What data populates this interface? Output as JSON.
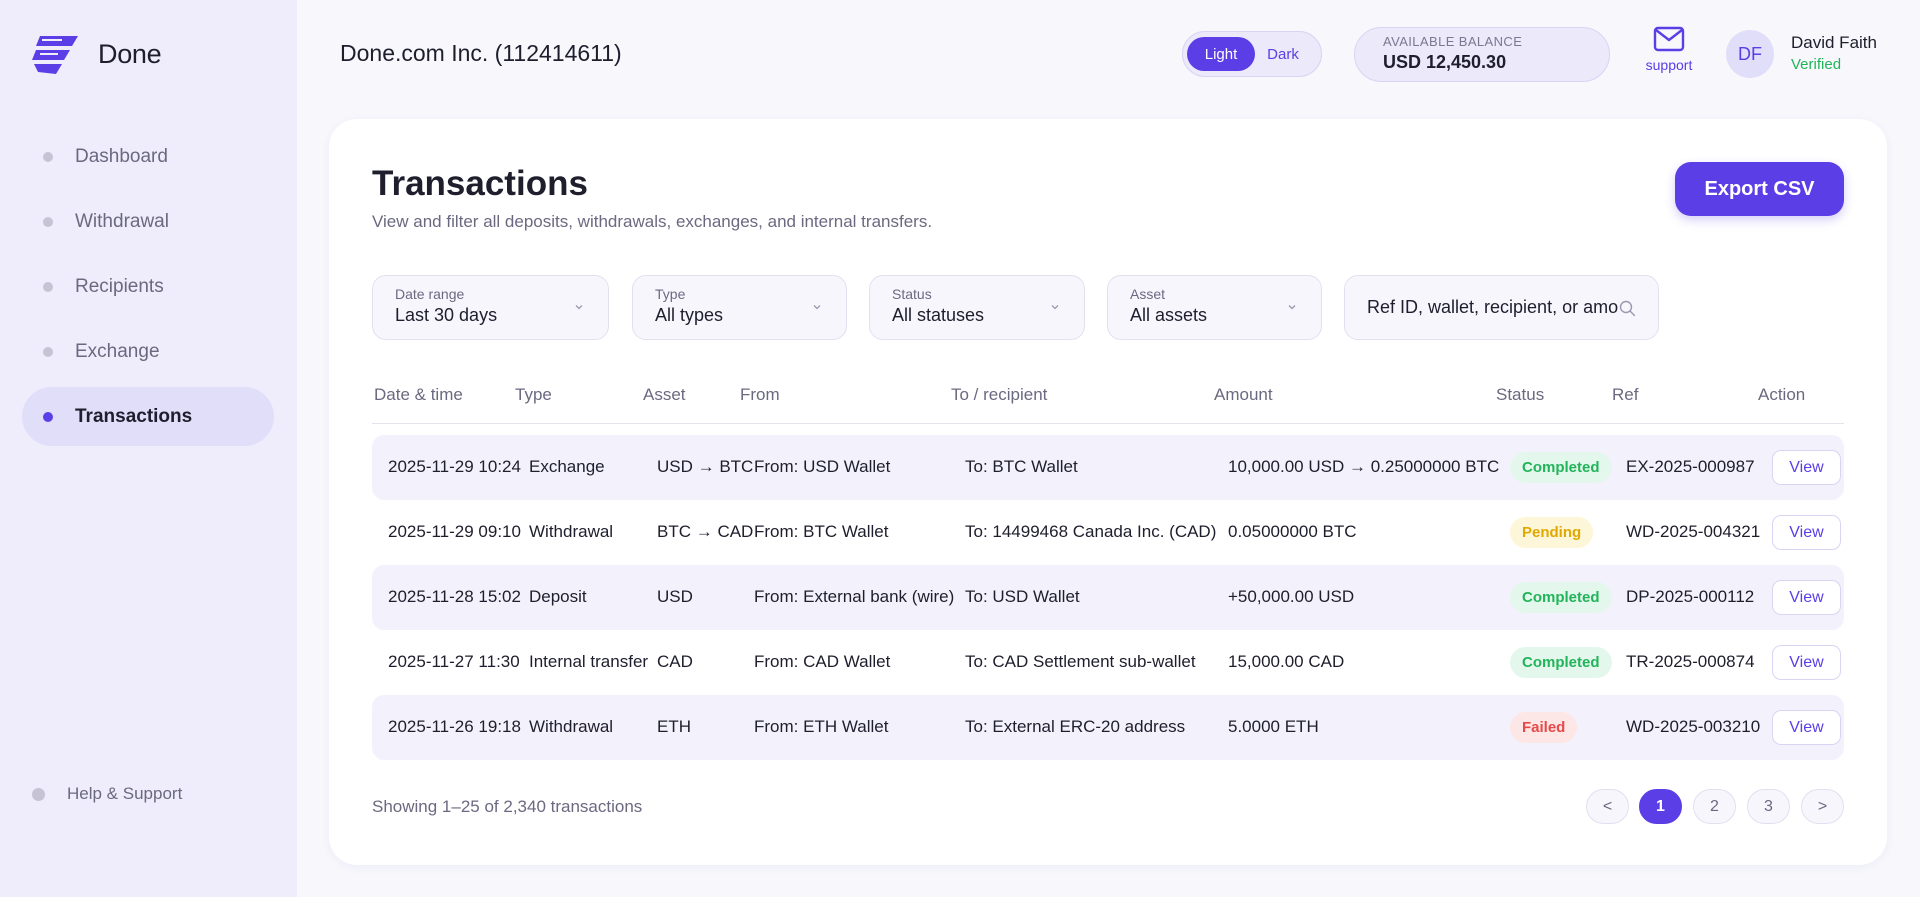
{
  "brand": {
    "name": "Done"
  },
  "sidebar": {
    "items": [
      {
        "label": "Dashboard",
        "active": false
      },
      {
        "label": "Withdrawal",
        "active": false
      },
      {
        "label": "Recipients",
        "active": false
      },
      {
        "label": "Exchange",
        "active": false
      },
      {
        "label": "Transactions",
        "active": true
      }
    ],
    "help_label": "Help & Support"
  },
  "header": {
    "company": "Done.com Inc. (112414611)",
    "theme": {
      "light_label": "Light",
      "dark_label": "Dark",
      "selected": "Light"
    },
    "balance": {
      "label": "AVAILABLE BALANCE",
      "value": "USD 12,450.30"
    },
    "support_label": "support",
    "user": {
      "initials": "DF",
      "name": "David Faith",
      "status": "Verified"
    }
  },
  "page": {
    "title": "Transactions",
    "subtitle": "View and filter all deposits, withdrawals, exchanges, and internal transfers.",
    "export_label": "Export CSV"
  },
  "filters": {
    "date": {
      "label": "Date range",
      "value": "Last 30 days"
    },
    "type": {
      "label": "Type",
      "value": "All types"
    },
    "status": {
      "label": "Status",
      "value": "All statuses"
    },
    "asset": {
      "label": "Asset",
      "value": "All assets"
    },
    "search_placeholder": "Ref ID, wallet, recipient, or amount"
  },
  "table": {
    "columns": {
      "datetime": "Date & time",
      "type": "Type",
      "asset": "Asset",
      "from": "From",
      "to": "To / recipient",
      "amount": "Amount",
      "status": "Status",
      "ref": "Ref",
      "action": "Action"
    },
    "rows": [
      {
        "datetime": "2025-11-29 10:24",
        "type": "Exchange",
        "asset": "USD → BTC",
        "from": "From: USD Wallet",
        "to": "To: BTC Wallet",
        "amount": "10,000.00 USD → 0.25000000 BTC",
        "status": "Completed",
        "status_kind": "completed",
        "ref": "EX-2025-000987",
        "action": "View"
      },
      {
        "datetime": "2025-11-29 09:10",
        "type": "Withdrawal",
        "asset": "BTC → CAD",
        "from": "From: BTC Wallet",
        "to": "To: 14499468 Canada Inc. (CAD)",
        "amount": "0.05000000 BTC",
        "status": "Pending",
        "status_kind": "pending",
        "ref": "WD-2025-004321",
        "action": "View"
      },
      {
        "datetime": "2025-11-28 15:02",
        "type": "Deposit",
        "asset": "USD",
        "from": "From: External bank (wire)",
        "to": "To: USD Wallet",
        "amount": "+50,000.00 USD",
        "status": "Completed",
        "status_kind": "completed",
        "ref": "DP-2025-000112",
        "action": "View"
      },
      {
        "datetime": "2025-11-27 11:30",
        "type": "Internal transfer",
        "asset": "CAD",
        "from": "From: CAD Wallet",
        "to": "To: CAD Settlement sub-wallet",
        "amount": "15,000.00 CAD",
        "status": "Completed",
        "status_kind": "completed",
        "ref": "TR-2025-000874",
        "action": "View"
      },
      {
        "datetime": "2025-11-26 19:18",
        "type": "Withdrawal",
        "asset": "ETH",
        "from": "From: ETH Wallet",
        "to": "To: External ERC-20 address",
        "amount": "5.0000 ETH",
        "status": "Failed",
        "status_kind": "failed",
        "ref": "WD-2025-003210",
        "action": "View"
      }
    ]
  },
  "footer": {
    "showing": "Showing 1–25 of 2,340 transactions",
    "pagination": {
      "prev": "<",
      "pages": [
        "1",
        "2",
        "3"
      ],
      "current": "1",
      "next": ">"
    }
  },
  "colors": {
    "accent": "#5b3ee6",
    "sidebar_bg": "#efedfb",
    "success": "#22b45a",
    "warning": "#e0a800",
    "danger": "#e64949"
  },
  "icons": {
    "logo": "done-logo-icon",
    "support": "envelope-icon",
    "search": "search-icon",
    "chevron": "chevron-down-icon"
  }
}
